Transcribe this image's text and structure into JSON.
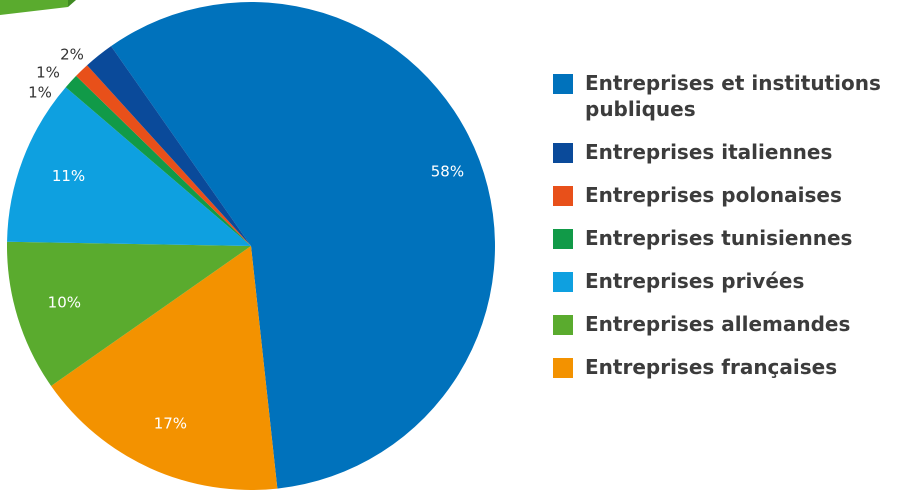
{
  "chart_data": {
    "type": "pie",
    "title": "",
    "start_angle_deg": -35,
    "slices": [
      {
        "label": "Entreprises et institutions publiques",
        "value": 58,
        "display": "58%",
        "color": "#0072bc"
      },
      {
        "label": "Entreprises françaises",
        "value": 17,
        "display": "17%",
        "color": "#f39200"
      },
      {
        "label": "Entreprises allemandes",
        "value": 10,
        "display": "10%",
        "color": "#5aab2e"
      },
      {
        "label": "Entreprises privées",
        "value": 11,
        "display": "11%",
        "color": "#0ea0e0"
      },
      {
        "label": "Entreprises tunisiennes",
        "value": 1,
        "display": "1%",
        "color": "#119a48"
      },
      {
        "label": "Entreprises polonaises",
        "value": 1,
        "display": "1%",
        "color": "#e8501a"
      },
      {
        "label": "Entreprises italiennes",
        "value": 2,
        "display": "2%",
        "color": "#0a4a9a"
      }
    ],
    "legend": {
      "placement": "right",
      "items": [
        {
          "label": "Entreprises et institutions publiques",
          "color": "#0072bc"
        },
        {
          "label": "Entreprises italiennes",
          "color": "#0a4a9a"
        },
        {
          "label": "Entreprises polonaises",
          "color": "#e8501a"
        },
        {
          "label": "Entreprises tunisiennes",
          "color": "#119a48"
        },
        {
          "label": "Entreprises privées",
          "color": "#0ea0e0"
        },
        {
          "label": "Entreprises allemandes",
          "color": "#5aab2e"
        },
        {
          "label": "Entreprises françaises",
          "color": "#f39200"
        }
      ]
    }
  },
  "colors": {
    "corner_accent": "#5aab2e",
    "corner_accent_dark": "#3f8a22",
    "legend_text": "#3c3c3c",
    "outer_label_text": "#333333",
    "inner_label_text": "#ffffff"
  }
}
